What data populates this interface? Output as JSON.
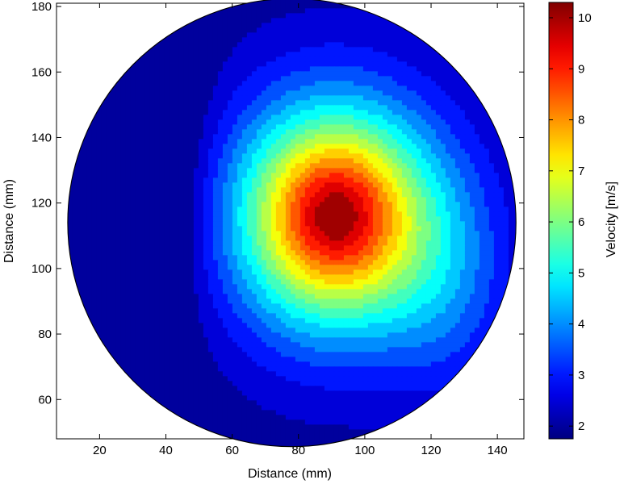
{
  "chart_data": {
    "type": "contour",
    "title": "",
    "xlabel": "Distance (mm)",
    "ylabel": "Distance (mm)",
    "colorbar_label": "Velocity [m/s]",
    "xlim": [
      7,
      148
    ],
    "ylim": [
      48,
      181
    ],
    "x_ticks": [
      "20",
      "40",
      "60",
      "80",
      "100",
      "120",
      "140"
    ],
    "y_ticks": [
      "60",
      "80",
      "100",
      "120",
      "140",
      "160",
      "180"
    ],
    "x_tick_values": [
      20,
      40,
      60,
      80,
      100,
      120,
      140
    ],
    "y_tick_values": [
      60,
      80,
      100,
      120,
      140,
      160,
      180
    ],
    "colorbar_ticks": [
      "2",
      "3",
      "4",
      "5",
      "6",
      "7",
      "8",
      "9",
      "10"
    ],
    "colorbar_tick_values": [
      2,
      3,
      4,
      5,
      6,
      7,
      8,
      9,
      10
    ],
    "colorbar_range": [
      1.75,
      10.3
    ],
    "domain": {
      "shape": "circle",
      "center_x": 78,
      "center_y": 114,
      "radius": 68
    },
    "velocity_peak": {
      "x": 91,
      "y": 116,
      "value": 10.2
    },
    "low_velocity_region": {
      "x_range": [
        22,
        48
      ],
      "y_range": [
        82,
        172
      ],
      "value": 2.0
    },
    "contour_levels": [
      2.25,
      2.75,
      3.25,
      3.75,
      4.25,
      4.75,
      5.25,
      5.75,
      6.25,
      6.75,
      7.25,
      7.75,
      8.25,
      8.75,
      9.25,
      9.75
    ]
  }
}
